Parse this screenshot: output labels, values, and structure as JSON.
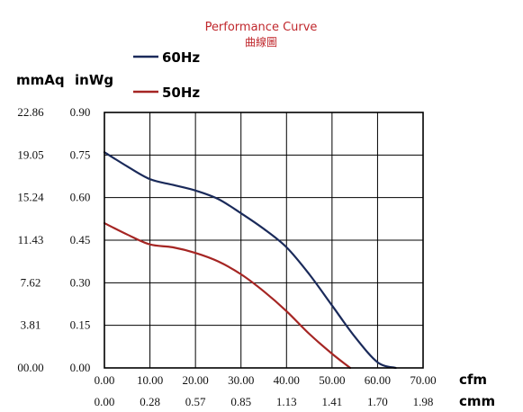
{
  "chart_data": {
    "type": "line",
    "title": "Performance Curve",
    "subtitle": "曲線圖",
    "title_color": "#c0282d",
    "y_units": {
      "left": "mmAq",
      "right": "inWg"
    },
    "x_units": {
      "primary": "cfm",
      "secondary": "cmm"
    },
    "y_ticks_mmAq": [
      "22.86",
      "19.05",
      "15.24",
      "11.43",
      "7.62",
      "3.81",
      "00.00"
    ],
    "y_ticks_inWg": [
      "0.90",
      "0.75",
      "0.60",
      "0.45",
      "0.30",
      "0.15",
      "0.00"
    ],
    "x_ticks_cfm": [
      "0.00",
      "10.00",
      "20.00",
      "30.00",
      "40.00",
      "50.00",
      "60.00",
      "70.00"
    ],
    "x_ticks_cmm": [
      "0.00",
      "0.28",
      "0.57",
      "0.85",
      "1.13",
      "1.41",
      "1.70",
      "1.98"
    ],
    "xlim": [
      0,
      70
    ],
    "ylim": [
      0,
      0.9
    ],
    "grid": true,
    "legend_position": "top-left",
    "series": [
      {
        "name": "60Hz",
        "color": "#1a2a5a",
        "points": [
          [
            0,
            0.76
          ],
          [
            5,
            0.71
          ],
          [
            10,
            0.665
          ],
          [
            15,
            0.645
          ],
          [
            20,
            0.625
          ],
          [
            25,
            0.595
          ],
          [
            30,
            0.545
          ],
          [
            35,
            0.49
          ],
          [
            40,
            0.425
          ],
          [
            45,
            0.33
          ],
          [
            50,
            0.22
          ],
          [
            55,
            0.11
          ],
          [
            60,
            0.02
          ],
          [
            64,
            0.0
          ]
        ]
      },
      {
        "name": "50Hz",
        "color": "#a52523",
        "points": [
          [
            0,
            0.51
          ],
          [
            5,
            0.47
          ],
          [
            10,
            0.435
          ],
          [
            15,
            0.425
          ],
          [
            20,
            0.405
          ],
          [
            25,
            0.375
          ],
          [
            30,
            0.33
          ],
          [
            35,
            0.27
          ],
          [
            40,
            0.2
          ],
          [
            45,
            0.12
          ],
          [
            50,
            0.05
          ],
          [
            54,
            0.0
          ]
        ]
      }
    ]
  }
}
